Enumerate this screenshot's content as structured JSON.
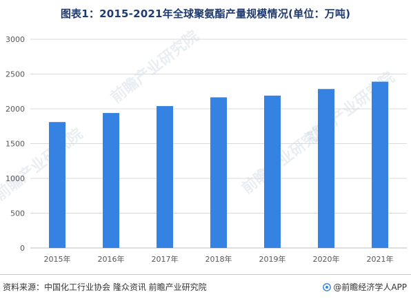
{
  "title": "图表1：2015-2021年全球聚氨酯产量规模情况(单位：万吨)",
  "watermark": "前瞻产业研究院",
  "footer": {
    "source": "资料来源：中国化工行业协会 隆众资讯 前瞻产业研究院",
    "brand": "@前瞻经济学人APP"
  },
  "colors": {
    "bar": "#3582e3",
    "grid": "#d9d9d9",
    "axis": "#bfbfbf",
    "title": "#1f3a6e"
  },
  "chart_data": {
    "type": "bar",
    "title": "图表1：2015-2021年全球聚氨酯产量规模情况(单位：万吨)",
    "categories": [
      "2015年",
      "2016年",
      "2017年",
      "2018年",
      "2019年",
      "2020年",
      "2021年"
    ],
    "values": [
      1810,
      1940,
      2040,
      2165,
      2190,
      2285,
      2390
    ],
    "ylim": [
      0,
      3000
    ],
    "yticks": [
      0,
      500,
      1000,
      1500,
      2000,
      2500,
      3000
    ],
    "grid": true,
    "legend": "none"
  }
}
